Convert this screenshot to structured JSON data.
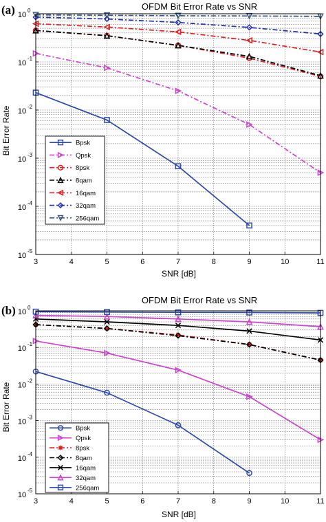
{
  "chart_data": [
    {
      "panel_label": "(a)",
      "type": "line",
      "title": "OFDM Bit Error Rate vs SNR",
      "xlabel": "SNR [dB]",
      "ylabel": "Bit Error Rate",
      "xlim": [
        3,
        11
      ],
      "ylim": [
        1e-05,
        1
      ],
      "yscale": "log",
      "grid": true,
      "legend_position": "lower-left",
      "x_ticks": [
        "3",
        "4",
        "5",
        "6",
        "7",
        "8",
        "9",
        "10",
        "11"
      ],
      "y_tick_exponents": [
        "0",
        "-1",
        "-2",
        "-3",
        "-4",
        "-5"
      ],
      "y_tick_base": "10",
      "x": [
        3,
        5,
        7,
        9,
        11
      ],
      "series": [
        {
          "name": "Bpsk",
          "color": "#2e4aa8",
          "marker": "square",
          "dash": "",
          "values": [
            0.023,
            0.0062,
            0.00068,
            4e-05,
            null
          ]
        },
        {
          "name": "Qpsk",
          "color": "#cc44cc",
          "marker": "triangle-right",
          "dash": "7,3,2,3",
          "values": [
            0.15,
            0.075,
            0.025,
            0.005,
            0.0005
          ]
        },
        {
          "name": "8psk",
          "color": "#e02020",
          "marker": "circle",
          "dash": "7,3,2,3",
          "values": [
            0.45,
            0.35,
            0.22,
            0.12,
            0.05
          ]
        },
        {
          "name": "8qam",
          "color": "#000000",
          "marker": "triangle-up",
          "dash": "7,3,2,3",
          "values": [
            0.45,
            0.35,
            0.22,
            0.13,
            0.052
          ]
        },
        {
          "name": "16qam",
          "color": "#e02020",
          "marker": "triangle-left",
          "dash": "7,3,2,3",
          "values": [
            0.62,
            0.53,
            0.42,
            0.28,
            0.16
          ]
        },
        {
          "name": "32qam",
          "color": "#2233aa",
          "marker": "diamond",
          "dash": "7,3,2,3",
          "values": [
            0.85,
            0.78,
            0.66,
            0.52,
            0.38
          ]
        },
        {
          "name": "256qam",
          "color": "#3c5a80",
          "marker": "triangle-down",
          "dash": "7,3,2,3",
          "values": [
            0.95,
            0.93,
            0.91,
            0.9,
            0.88
          ]
        }
      ]
    },
    {
      "panel_label": "(b)",
      "type": "line",
      "title": "OFDM Bit Error Rate vs SNR",
      "xlabel": "SNR [dB]",
      "ylabel": "Bit Error Rate",
      "xlim": [
        3,
        11
      ],
      "ylim": [
        1e-05,
        1
      ],
      "yscale": "log",
      "grid": true,
      "legend_position": "lower-left",
      "x_ticks": [
        "3",
        "4",
        "5",
        "6",
        "7",
        "8",
        "9",
        "10",
        "11"
      ],
      "y_tick_exponents": [
        "0",
        "-1",
        "-2",
        "-3",
        "-4",
        "-5"
      ],
      "y_tick_base": "10",
      "x": [
        3,
        5,
        7,
        9,
        11
      ],
      "series": [
        {
          "name": "Bpsk",
          "color": "#2e4aa8",
          "marker": "circle",
          "dash": "",
          "values": [
            0.022,
            0.0058,
            0.00075,
            3.7e-05,
            null
          ]
        },
        {
          "name": "Qpsk",
          "color": "#cc44cc",
          "marker": "triangle-right",
          "dash": "",
          "values": [
            0.15,
            0.07,
            0.024,
            0.0045,
            0.0003
          ]
        },
        {
          "name": "8psk",
          "color": "#e02020",
          "marker": "star",
          "dash": "7,3,2,3",
          "values": [
            0.42,
            0.33,
            0.22,
            0.12,
            0.045
          ]
        },
        {
          "name": "8qam",
          "color": "#000000",
          "marker": "diamond",
          "dash": "7,3,2,3",
          "values": [
            0.42,
            0.33,
            0.21,
            0.12,
            0.045
          ]
        },
        {
          "name": "16qam",
          "color": "#000000",
          "marker": "x-line",
          "dash": "",
          "values": [
            0.6,
            0.5,
            0.4,
            0.28,
            0.16
          ]
        },
        {
          "name": "32qam",
          "color": "#cc44cc",
          "marker": "triangle-up",
          "dash": "",
          "values": [
            0.75,
            0.7,
            0.6,
            0.5,
            0.37
          ]
        },
        {
          "name": "256qam",
          "color": "#2e4aa8",
          "marker": "square",
          "dash": "",
          "values": [
            0.95,
            0.93,
            0.91,
            0.9,
            0.88
          ]
        }
      ]
    }
  ]
}
